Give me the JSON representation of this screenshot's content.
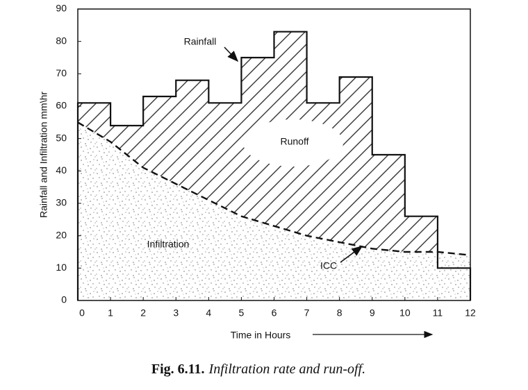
{
  "chart_data": {
    "type": "histogram",
    "xlabel": "Time in Hours",
    "ylabel": "Rainfall and Infiltration mm\\hr",
    "xlim": [
      0,
      12
    ],
    "xticks": [
      0,
      1,
      2,
      3,
      4,
      5,
      6,
      7,
      8,
      9,
      10,
      11,
      12
    ],
    "ylim": [
      0,
      90
    ],
    "yticks": [
      0,
      10,
      20,
      30,
      40,
      50,
      60,
      70,
      80,
      90
    ],
    "rainfall": {
      "bins": [
        0,
        1,
        2,
        3,
        4,
        5,
        6,
        7,
        8,
        9,
        10,
        11,
        12
      ],
      "values": [
        61,
        54,
        63,
        68,
        61,
        75,
        83,
        61,
        69,
        45,
        26,
        10
      ]
    },
    "icc": {
      "x": [
        0,
        1,
        2,
        3,
        4,
        5,
        6,
        7,
        8,
        9,
        10,
        11,
        12
      ],
      "values": [
        55,
        49,
        41,
        36,
        31,
        26,
        23,
        20,
        18,
        16,
        15,
        15,
        14
      ]
    },
    "annotations": [
      "Rainfall",
      "Runoff",
      "Infiltration",
      "ICC"
    ],
    "caption": {
      "label": "Fig. 6.11.",
      "text": "Infiltration rate and run-off."
    }
  }
}
